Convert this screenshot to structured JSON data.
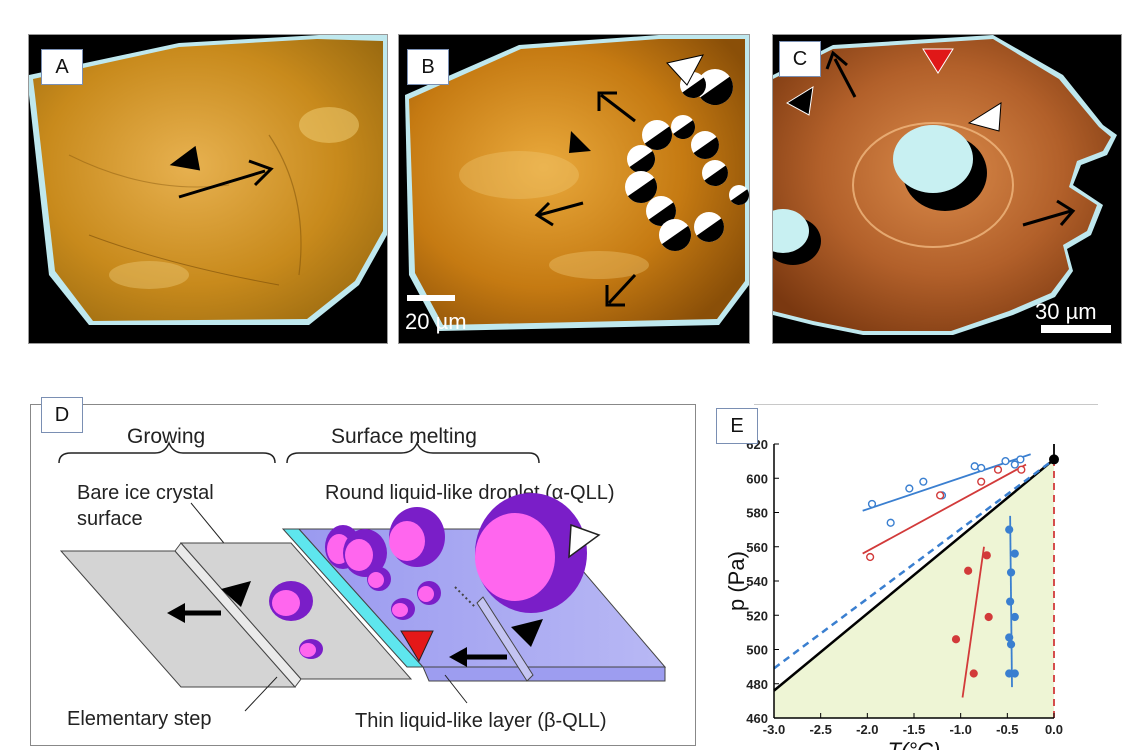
{
  "panels": {
    "a": {
      "label": "A"
    },
    "b": {
      "label": "B",
      "scale_bar": "20 µm"
    },
    "c": {
      "label": "C",
      "scale_bar": "30 µm"
    },
    "d": {
      "label": "D",
      "growing": "Growing",
      "surface_melting": "Surface melting",
      "bare_ice_line1": "Bare ice crystal",
      "bare_ice_line2": "surface",
      "droplet": "Round liquid-like droplet (α-QLL)",
      "step": "Elementary step",
      "thin_layer": "Thin liquid-like layer (β-QLL)"
    },
    "e": {
      "label": "E"
    }
  },
  "chart_data": {
    "type": "scatter",
    "xlabel": "T(°C)",
    "ylabel": "p (Pa)",
    "xlim": [
      -3.0,
      0.0
    ],
    "ylim": [
      460,
      620
    ],
    "xticks": [
      "-3.0",
      "-2.5",
      "-2.0",
      "-1.5",
      "-1.0",
      "-0.5",
      "0.0"
    ],
    "yticks": [
      "460",
      "480",
      "500",
      "520",
      "540",
      "560",
      "580",
      "600",
      "620"
    ],
    "series": [
      {
        "name": "blue open",
        "color": "#3a7fd0",
        "filled": false,
        "points": [
          [
            -1.95,
            585
          ],
          [
            -1.75,
            574
          ],
          [
            -1.55,
            594
          ],
          [
            -1.4,
            598
          ],
          [
            -1.2,
            590
          ],
          [
            -0.85,
            607
          ],
          [
            -0.78,
            606
          ],
          [
            -0.52,
            610
          ],
          [
            -0.42,
            608
          ],
          [
            -0.36,
            611
          ]
        ]
      },
      {
        "name": "red open",
        "color": "#d23a3a",
        "filled": false,
        "points": [
          [
            -1.97,
            554
          ],
          [
            -1.22,
            590
          ],
          [
            -0.78,
            598
          ],
          [
            -0.6,
            605
          ],
          [
            -0.35,
            605
          ]
        ]
      },
      {
        "name": "red filled",
        "color": "#d23a3a",
        "filled": true,
        "points": [
          [
            -1.05,
            506
          ],
          [
            -0.92,
            546
          ],
          [
            -0.86,
            486
          ],
          [
            -0.72,
            555
          ],
          [
            -0.7,
            519
          ]
        ]
      },
      {
        "name": "blue filled",
        "color": "#3a7fd0",
        "filled": true,
        "points": [
          [
            -0.48,
            570
          ],
          [
            -0.42,
            556
          ],
          [
            -0.46,
            545
          ],
          [
            -0.47,
            528
          ],
          [
            -0.42,
            519
          ],
          [
            -0.48,
            507
          ],
          [
            -0.46,
            503
          ],
          [
            -0.48,
            486
          ],
          [
            -0.42,
            486
          ]
        ]
      }
    ],
    "lines": [
      {
        "name": "blue fit",
        "color": "#3a7fd0",
        "style": "solid",
        "points": [
          [
            -2.05,
            581
          ],
          [
            -0.25,
            614
          ]
        ]
      },
      {
        "name": "red fit",
        "color": "#d23a3a",
        "style": "solid",
        "points": [
          [
            -2.05,
            556
          ],
          [
            -0.3,
            608
          ]
        ]
      },
      {
        "name": "red vertical fit",
        "color": "#d23a3a",
        "style": "solid",
        "points": [
          [
            -0.98,
            472
          ],
          [
            -0.75,
            560
          ]
        ]
      },
      {
        "name": "blue vertical fit",
        "color": "#3a7fd0",
        "style": "solid",
        "points": [
          [
            -0.45,
            478
          ],
          [
            -0.47,
            578
          ]
        ]
      },
      {
        "name": "black boundary",
        "color": "#000000",
        "style": "solid",
        "points": [
          [
            -3.0,
            476
          ],
          [
            0.0,
            611
          ]
        ]
      },
      {
        "name": "dashed boundary",
        "color": "#3a7fd0",
        "style": "dashed",
        "points": [
          [
            -3.0,
            489
          ],
          [
            0.0,
            611
          ]
        ]
      },
      {
        "name": "triple vertical",
        "color": "#000000",
        "style": "solid",
        "points": [
          [
            0.0,
            611
          ],
          [
            0.0,
            620
          ]
        ]
      },
      {
        "name": "red dashed vertical",
        "color": "#d23a3a",
        "style": "dashed",
        "points": [
          [
            0.0,
            460
          ],
          [
            0.0,
            611
          ]
        ]
      }
    ],
    "triple_point": [
      0.0,
      611
    ],
    "shaded_region_color": "#eef5d5"
  }
}
